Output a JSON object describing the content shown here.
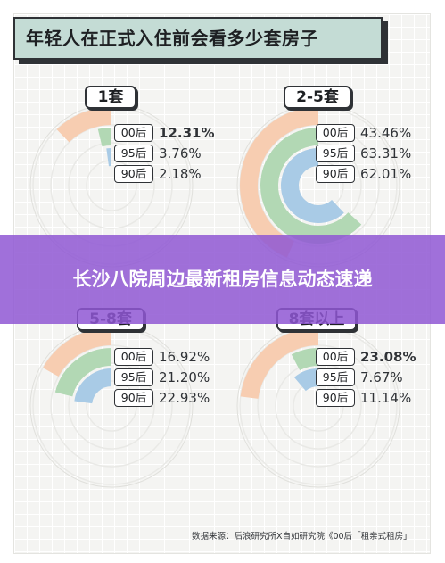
{
  "title": "年轻人在正式入住前会看多少套房子",
  "banner": "长沙八院周边最新租房信息动态速递",
  "source": "数据来源：后浪研究所X自如研究院《00后「租亲式租房」",
  "colors": {
    "s00": "#f7cdb1",
    "s95": "#b2d8b4",
    "s90": "#a9cbe6",
    "track": "#e9e9e6"
  },
  "chart_data": [
    {
      "type": "radial-bar",
      "title": "1套",
      "series": [
        {
          "name": "00后",
          "value": 12.31,
          "label": "12.31%",
          "emphasis": true
        },
        {
          "name": "95后",
          "value": 3.76,
          "label": "3.76%",
          "emphasis": false
        },
        {
          "name": "90后",
          "value": 2.18,
          "label": "2.18%",
          "emphasis": false
        }
      ]
    },
    {
      "type": "radial-bar",
      "title": "2-5套",
      "series": [
        {
          "name": "00后",
          "value": 43.46,
          "label": "43.46%",
          "emphasis": false
        },
        {
          "name": "95后",
          "value": 63.31,
          "label": "63.31%",
          "emphasis": false
        },
        {
          "name": "90后",
          "value": 62.01,
          "label": "62.01%",
          "emphasis": false
        }
      ]
    },
    {
      "type": "radial-bar",
      "title": "5-8套",
      "series": [
        {
          "name": "00后",
          "value": 16.92,
          "label": "16.92%",
          "emphasis": false
        },
        {
          "name": "95后",
          "value": 21.2,
          "label": "21.20%",
          "emphasis": false
        },
        {
          "name": "90后",
          "value": 22.93,
          "label": "22.93%",
          "emphasis": false
        }
      ]
    },
    {
      "type": "radial-bar",
      "title": "8套以上",
      "series": [
        {
          "name": "00后",
          "value": 23.08,
          "label": "23.08%",
          "emphasis": true
        },
        {
          "name": "95后",
          "value": 7.67,
          "label": "7.67%",
          "emphasis": false
        },
        {
          "name": "90后",
          "value": 11.14,
          "label": "11.14%",
          "emphasis": false
        }
      ]
    }
  ]
}
